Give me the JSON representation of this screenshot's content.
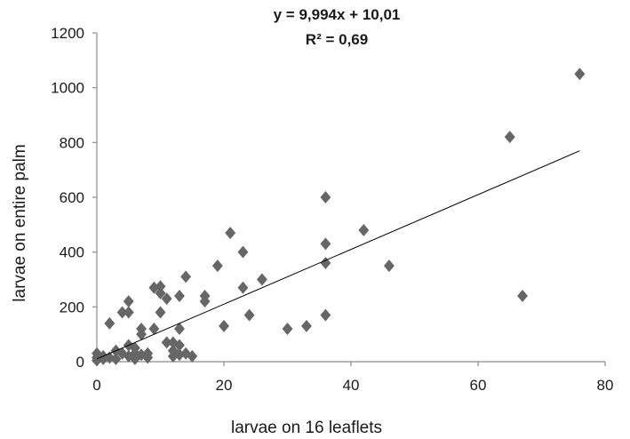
{
  "chart_data": {
    "type": "scatter",
    "title": "",
    "xlabel": "larvae on 16 leaflets",
    "ylabel": "larvae on entire palm",
    "xlim": [
      0,
      80
    ],
    "ylim": [
      0,
      1200
    ],
    "x_ticks": [
      "0",
      "20",
      "40",
      "60",
      "80"
    ],
    "y_ticks": [
      "0",
      "200",
      "400",
      "600",
      "800",
      "1000",
      "1200"
    ],
    "grid": false,
    "marker": "diamond",
    "marker_color": "#666666",
    "trendline": {
      "type": "linear",
      "slope": 9.994,
      "intercept": 10.01,
      "x_range": [
        0,
        76
      ],
      "equation_label": "y = 9,994x + 10,01",
      "r2_label": "R² = 0,69"
    },
    "points": [
      [
        0,
        5
      ],
      [
        0,
        15
      ],
      [
        0,
        30
      ],
      [
        1,
        10
      ],
      [
        1,
        20
      ],
      [
        2,
        140
      ],
      [
        2,
        15
      ],
      [
        3,
        40
      ],
      [
        3,
        10
      ],
      [
        4,
        180
      ],
      [
        4,
        30
      ],
      [
        5,
        180
      ],
      [
        5,
        220
      ],
      [
        5,
        60
      ],
      [
        5,
        20
      ],
      [
        6,
        30
      ],
      [
        6,
        10
      ],
      [
        6,
        50
      ],
      [
        7,
        100
      ],
      [
        7,
        120
      ],
      [
        7,
        25
      ],
      [
        8,
        15
      ],
      [
        8,
        30
      ],
      [
        9,
        270
      ],
      [
        9,
        120
      ],
      [
        10,
        250
      ],
      [
        10,
        275
      ],
      [
        10,
        180
      ],
      [
        11,
        230
      ],
      [
        11,
        70
      ],
      [
        12,
        70
      ],
      [
        12,
        20
      ],
      [
        12,
        40
      ],
      [
        13,
        240
      ],
      [
        13,
        120
      ],
      [
        13,
        60
      ],
      [
        13,
        25
      ],
      [
        14,
        310
      ],
      [
        14,
        30
      ],
      [
        15,
        20
      ],
      [
        17,
        220
      ],
      [
        17,
        240
      ],
      [
        19,
        350
      ],
      [
        20,
        130
      ],
      [
        21,
        470
      ],
      [
        23,
        400
      ],
      [
        23,
        270
      ],
      [
        24,
        170
      ],
      [
        26,
        300
      ],
      [
        30,
        120
      ],
      [
        33,
        130
      ],
      [
        36,
        600
      ],
      [
        36,
        430
      ],
      [
        36,
        360
      ],
      [
        36,
        170
      ],
      [
        42,
        480
      ],
      [
        46,
        350
      ],
      [
        65,
        820
      ],
      [
        67,
        240
      ],
      [
        76,
        1050
      ]
    ]
  }
}
